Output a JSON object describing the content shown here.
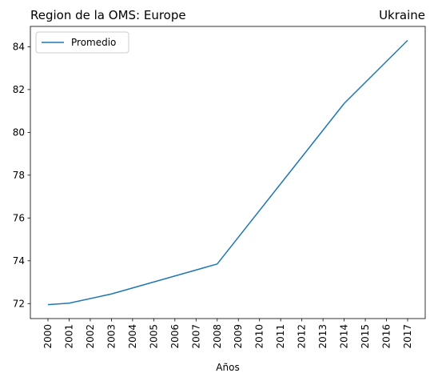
{
  "chart_data": {
    "type": "line",
    "title_left": "Region de la OMS: Europe",
    "title_right": "Ukraine",
    "xlabel": "Años",
    "ylabel": "",
    "x": [
      "2000",
      "2001",
      "2002",
      "2003",
      "2004",
      "2005",
      "2006",
      "2007",
      "2008",
      "2009",
      "2010",
      "2011",
      "2012",
      "2013",
      "2014",
      "2015",
      "2016",
      "2017"
    ],
    "y_ticks": [
      72,
      74,
      76,
      78,
      80,
      82,
      84
    ],
    "ylim": [
      71.3,
      84.95
    ],
    "grid": false,
    "legend_position": "upper-left",
    "series": [
      {
        "name": "Promedio",
        "color": "#1f77b4",
        "points": [
          {
            "x": "2000",
            "y": 71.95
          },
          {
            "x": "2001",
            "y": 72.02
          },
          {
            "x": "2003",
            "y": 72.45
          },
          {
            "x": "2008",
            "y": 73.85
          },
          {
            "x": "2014",
            "y": 81.35
          },
          {
            "x": "2017",
            "y": 84.3
          }
        ]
      }
    ]
  }
}
